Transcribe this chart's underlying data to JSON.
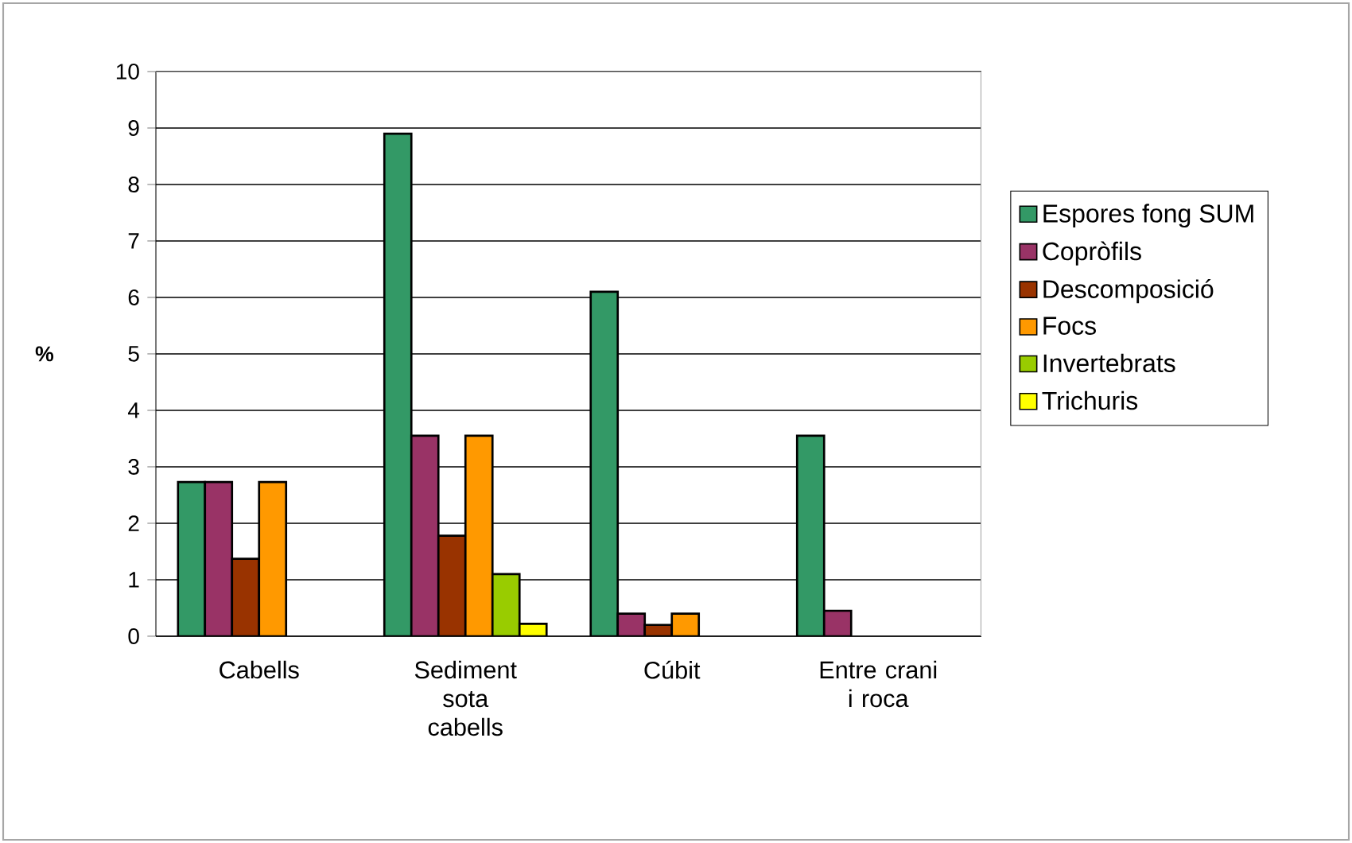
{
  "chart_data": {
    "type": "bar",
    "ylabel": "%",
    "categories": [
      "Cabells",
      "Sediment sota cabells",
      "Cúbit",
      "Entre crani i roca"
    ],
    "series": [
      {
        "name": "Espores fong SUM",
        "color": "#339966",
        "values": [
          2.73,
          8.9,
          6.1,
          3.55
        ]
      },
      {
        "name": "Copròfils",
        "color": "#993366",
        "values": [
          2.73,
          3.55,
          0.4,
          0.45
        ]
      },
      {
        "name": "Descomposició",
        "color": "#993300",
        "values": [
          1.37,
          1.78,
          0.2,
          null
        ]
      },
      {
        "name": "Focs",
        "color": "#ff9900",
        "values": [
          2.73,
          3.55,
          0.4,
          null
        ]
      },
      {
        "name": "Invertebrats",
        "color": "#99cc00",
        "values": [
          null,
          1.1,
          null,
          null
        ]
      },
      {
        "name": "Trichuris",
        "color": "#ffff00",
        "values": [
          null,
          0.22,
          null,
          null
        ]
      }
    ],
    "ylim": [
      0,
      10
    ],
    "yticks": [
      0,
      1,
      2,
      3,
      4,
      5,
      6,
      7,
      8,
      9,
      10
    ],
    "grid": "y",
    "legend": "right"
  }
}
